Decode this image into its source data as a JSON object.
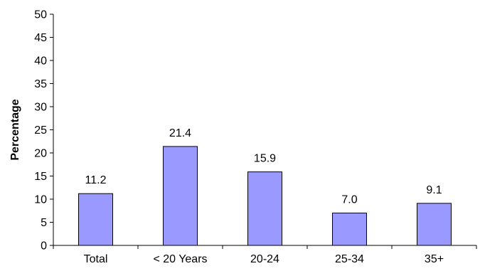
{
  "chart_data": {
    "type": "bar",
    "categories": [
      "Total",
      "< 20 Years",
      "20-24",
      "25-34",
      "35+"
    ],
    "values": [
      11.2,
      21.4,
      15.9,
      7.0,
      9.1
    ],
    "data_labels": [
      "11.2",
      "21.4",
      "15.9",
      "7.0",
      "9.1"
    ],
    "ylabel": "Percentage",
    "ylim": [
      0,
      50
    ],
    "yticks": [
      0,
      5,
      10,
      15,
      20,
      25,
      30,
      35,
      40,
      45,
      50
    ],
    "grid": false,
    "legend": "none",
    "bar_color": "#9999ff",
    "bar_edge_color": "#000000"
  }
}
